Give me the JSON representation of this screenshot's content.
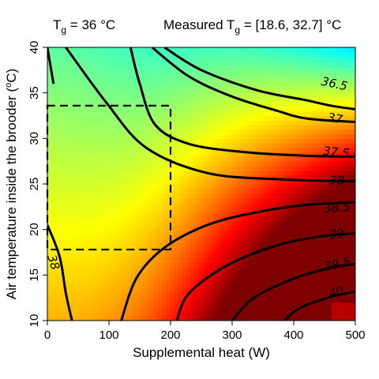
{
  "chart_data": {
    "type": "heatmap",
    "title_left": "T_g = 36 °C",
    "title_left_parts": {
      "sym": "T",
      "sub": "g",
      "rest": " = 36 °C"
    },
    "title_right_parts": {
      "pre": "Measured T",
      "sub": "g",
      "rest": " = [18.6, 32.7] °C"
    },
    "xlabel": "Supplemental heat (W)",
    "ylabel_main": "Air temperature inside the brooder (",
    "ylabel_sup": "o",
    "ylabel_end": "C)",
    "xlim": [
      0,
      500
    ],
    "ylim": [
      10,
      40
    ],
    "xticks": [
      0,
      100,
      200,
      300,
      400,
      500
    ],
    "yticks": [
      10,
      15,
      20,
      25,
      30,
      35,
      40
    ],
    "colormap": [
      "#00007f",
      "#0000ff",
      "#007fff",
      "#00ffff",
      "#7fff7f",
      "#ffff00",
      "#ff7f00",
      "#ff0000",
      "#7f0000"
    ],
    "z_range": [
      34.6,
      40.4
    ],
    "contour_levels": [
      "36.5",
      "37",
      "37.5",
      "38",
      "38.5",
      "39",
      "39.5",
      "40",
      "38"
    ],
    "contour_level_values": [
      36.5,
      37,
      37.5,
      38,
      38.5,
      39,
      39.5,
      40,
      38
    ],
    "dashed_box": {
      "x": [
        0,
        200
      ],
      "y": [
        17.8,
        33.6
      ]
    },
    "grid": false,
    "legend": "none"
  }
}
